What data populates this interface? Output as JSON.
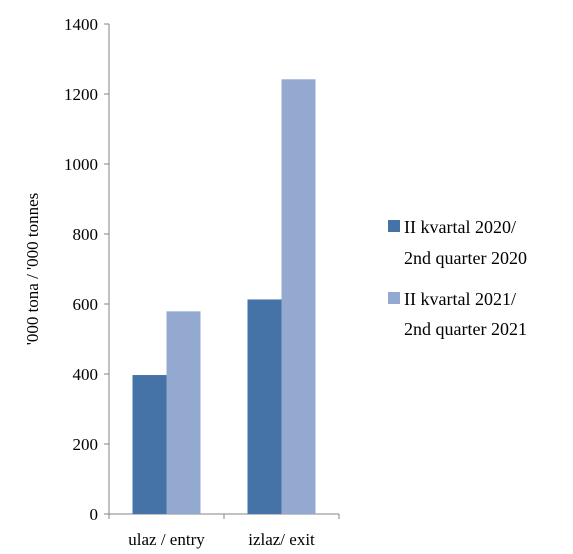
{
  "chart_data": {
    "type": "bar",
    "categories": [
      "ulaz / entry",
      "izlaz/ exit"
    ],
    "series": [
      {
        "name": "II kvartal 2020/ 2nd quarter 2020",
        "legend_lines": [
          "II kvartal 2020/",
          "2nd quarter 2020"
        ],
        "values": [
          397,
          613
        ],
        "color": "#4572A7"
      },
      {
        "name": "II kvartal  2021/ 2nd quarter 2021",
        "legend_lines": [
          "II kvartal  2021/",
          "2nd quarter 2021"
        ],
        "values": [
          579,
          1242
        ],
        "color": "#93A9CF"
      }
    ],
    "title": "",
    "xlabel": "",
    "ylabel": "'000 tona / '000 tonnes",
    "ylim": [
      0,
      1400
    ],
    "yticks": [
      "0",
      "200",
      "400",
      "600",
      "800",
      "1000",
      "1200",
      "1400"
    ],
    "grid": false,
    "legend_position": "right"
  }
}
